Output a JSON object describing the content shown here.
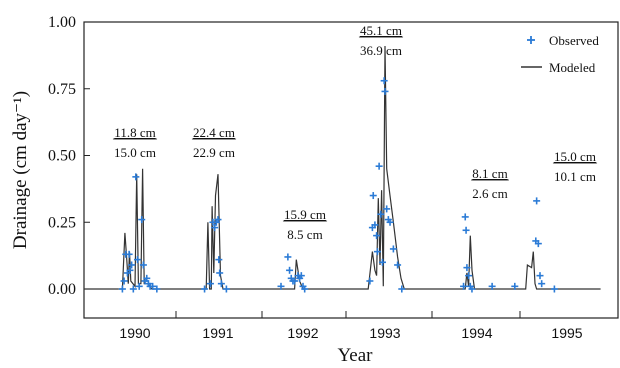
{
  "chart_data": {
    "type": "line",
    "xlabel": "Year",
    "ylabel": "Drainage (cm day⁻¹)",
    "ylim": [
      0,
      1.0
    ],
    "yticks": [
      "0.00",
      "0.25",
      "0.50",
      "0.75",
      "1.00"
    ],
    "x_categories": [
      "1990",
      "1991",
      "1992",
      "1993",
      "1994",
      "1995"
    ],
    "legend": {
      "position": "top-right",
      "entries": [
        {
          "name": "Observed",
          "marker": "plus",
          "color": "#2b7bd6"
        },
        {
          "name": "Modeled",
          "marker": "line",
          "color": "#333333"
        }
      ]
    },
    "annotations": [
      {
        "year": "1990",
        "observed_total": "11.8 cm",
        "modeled_total": "15.0 cm"
      },
      {
        "year": "1991",
        "observed_total": "22.4 cm",
        "modeled_total": "22.9 cm"
      },
      {
        "year": "1992",
        "observed_total": "15.9 cm",
        "modeled_total": "8.5 cm"
      },
      {
        "year": "1993",
        "observed_total": "45.1 cm",
        "modeled_total": "36.9 cm"
      },
      {
        "year": "1994",
        "observed_total": "8.1 cm",
        "modeled_total": "2.6 cm"
      },
      {
        "year": "1995",
        "observed_total": "15.0 cm",
        "modeled_total": "10.1 cm"
      }
    ],
    "series": [
      {
        "name": "Modeled",
        "style": "line",
        "points": [
          [
            1990.0,
            0.0
          ],
          [
            1990.05,
            0.0
          ],
          [
            1990.08,
            0.21
          ],
          [
            1990.1,
            0.12
          ],
          [
            1990.12,
            0.02
          ],
          [
            1990.135,
            0.14
          ],
          [
            1990.15,
            0.03
          ],
          [
            1990.2,
            0.01
          ],
          [
            1990.22,
            0.43
          ],
          [
            1990.24,
            0.02
          ],
          [
            1990.27,
            0.02
          ],
          [
            1990.29,
            0.45
          ],
          [
            1990.31,
            0.02
          ],
          [
            1990.35,
            0.02
          ],
          [
            1990.4,
            0.0
          ],
          [
            1991.0,
            0.0
          ],
          [
            1991.06,
            0.0
          ],
          [
            1991.08,
            0.25
          ],
          [
            1991.1,
            0.0
          ],
          [
            1991.12,
            0.0
          ],
          [
            1991.13,
            0.31
          ],
          [
            1991.15,
            0.06
          ],
          [
            1991.17,
            0.35
          ],
          [
            1991.2,
            0.43
          ],
          [
            1991.23,
            0.05
          ],
          [
            1991.26,
            0.0
          ],
          [
            1992.0,
            0.0
          ],
          [
            1992.1,
            0.0
          ],
          [
            1992.12,
            0.11
          ],
          [
            1992.16,
            0.03
          ],
          [
            1992.2,
            0.0
          ],
          [
            1992.95,
            0.0
          ],
          [
            1993.0,
            0.0
          ],
          [
            1993.05,
            0.14
          ],
          [
            1993.08,
            0.07
          ],
          [
            1993.1,
            0.05
          ],
          [
            1993.12,
            0.34
          ],
          [
            1993.14,
            0.09
          ],
          [
            1993.16,
            0.37
          ],
          [
            1993.18,
            0.01
          ],
          [
            1993.2,
            0.91
          ],
          [
            1993.22,
            0.45
          ],
          [
            1993.26,
            0.35
          ],
          [
            1993.3,
            0.25
          ],
          [
            1993.35,
            0.12
          ],
          [
            1993.39,
            0.04
          ],
          [
            1993.43,
            0.0
          ],
          [
            1994.0,
            0.0
          ],
          [
            1994.06,
            0.0
          ],
          [
            1994.08,
            0.06
          ],
          [
            1994.1,
            0.01
          ],
          [
            1994.12,
            0.2
          ],
          [
            1994.14,
            0.07
          ],
          [
            1994.17,
            0.0
          ],
          [
            1994.7,
            0.0
          ],
          [
            1994.78,
            0.0
          ],
          [
            1994.8,
            0.09
          ],
          [
            1994.85,
            0.08
          ],
          [
            1994.87,
            0.14
          ],
          [
            1994.89,
            0.02
          ],
          [
            1994.91,
            0.0
          ],
          [
            1995.6,
            0.0
          ]
        ]
      },
      {
        "name": "Observed",
        "style": "marker",
        "points": [
          [
            1990.05,
            0.0
          ],
          [
            1990.07,
            0.03
          ],
          [
            1990.09,
            0.13
          ],
          [
            1990.11,
            0.06
          ],
          [
            1990.13,
            0.13
          ],
          [
            1990.14,
            0.07
          ],
          [
            1990.16,
            0.09
          ],
          [
            1990.18,
            0.0
          ],
          [
            1990.21,
            0.42
          ],
          [
            1990.23,
            0.11
          ],
          [
            1990.25,
            0.01
          ],
          [
            1990.28,
            0.26
          ],
          [
            1990.3,
            0.09
          ],
          [
            1990.32,
            0.03
          ],
          [
            1990.34,
            0.04
          ],
          [
            1990.36,
            0.02
          ],
          [
            1990.38,
            0.01
          ],
          [
            1990.41,
            0.01
          ],
          [
            1990.46,
            0.0
          ],
          [
            1991.04,
            0.0
          ],
          [
            1991.11,
            0.02
          ],
          [
            1991.14,
            0.25
          ],
          [
            1991.16,
            0.23
          ],
          [
            1991.18,
            0.25
          ],
          [
            1991.2,
            0.26
          ],
          [
            1991.21,
            0.11
          ],
          [
            1991.22,
            0.06
          ],
          [
            1991.24,
            0.02
          ],
          [
            1991.3,
            0.0
          ],
          [
            1991.95,
            0.01
          ],
          [
            1992.02,
            0.12
          ],
          [
            1992.04,
            0.07
          ],
          [
            1992.06,
            0.04
          ],
          [
            1992.08,
            0.03
          ],
          [
            1992.1,
            0.03
          ],
          [
            1992.14,
            0.05
          ],
          [
            1992.16,
            0.04
          ],
          [
            1992.18,
            0.05
          ],
          [
            1992.2,
            0.01
          ],
          [
            1992.22,
            0.0
          ],
          [
            1993.02,
            0.03
          ],
          [
            1993.05,
            0.23
          ],
          [
            1993.06,
            0.35
          ],
          [
            1993.08,
            0.24
          ],
          [
            1993.1,
            0.2
          ],
          [
            1993.11,
            0.14
          ],
          [
            1993.13,
            0.46
          ],
          [
            1993.15,
            0.28
          ],
          [
            1993.17,
            0.1
          ],
          [
            1993.19,
            0.78
          ],
          [
            1993.2,
            0.74
          ],
          [
            1993.22,
            0.3
          ],
          [
            1993.24,
            0.26
          ],
          [
            1993.26,
            0.25
          ],
          [
            1993.3,
            0.15
          ],
          [
            1993.35,
            0.09
          ],
          [
            1993.4,
            0.0
          ],
          [
            1994.04,
            0.01
          ],
          [
            1994.06,
            0.27
          ],
          [
            1994.07,
            0.22
          ],
          [
            1994.08,
            0.08
          ],
          [
            1994.1,
            0.05
          ],
          [
            1994.12,
            0.01
          ],
          [
            1994.14,
            0.0
          ],
          [
            1994.38,
            0.01
          ],
          [
            1994.65,
            0.01
          ],
          [
            1994.9,
            0.18
          ],
          [
            1994.91,
            0.33
          ],
          [
            1994.93,
            0.17
          ],
          [
            1994.95,
            0.05
          ],
          [
            1994.97,
            0.02
          ],
          [
            1995.05,
            0.0
          ]
        ]
      }
    ]
  }
}
